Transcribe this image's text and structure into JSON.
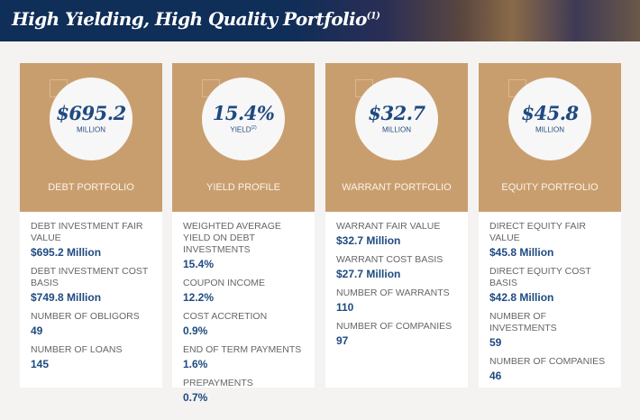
{
  "header": {
    "title": "High Yielding, High Quality Portfolio",
    "footnote": "(1)"
  },
  "cards": [
    {
      "value": "$695.2",
      "unit": "MILLION",
      "unit_sup": "",
      "category": "DEBT PORTFOLIO",
      "items": [
        {
          "label": "DEBT INVESTMENT FAIR VALUE",
          "value": "$695.2 Million"
        },
        {
          "label": "DEBT INVESTMENT COST BASIS",
          "value": "$749.8 Million"
        },
        {
          "label": "NUMBER OF OBLIGORS",
          "value": "49"
        },
        {
          "label": "NUMBER OF LOANS",
          "value": "145"
        }
      ]
    },
    {
      "value": "15.4%",
      "unit": "YIELD",
      "unit_sup": "(2)",
      "category": "YIELD PROFILE",
      "items": [
        {
          "label": "WEIGHTED AVERAGE YIELD ON DEBT INVESTMENTS",
          "value": "15.4%"
        },
        {
          "label": "COUPON INCOME",
          "value": "12.2%"
        },
        {
          "label": "COST ACCRETION",
          "value": "0.9%"
        },
        {
          "label": "END OF TERM PAYMENTS",
          "value": "1.6%"
        },
        {
          "label": "PREPAYMENTS",
          "value": "0.7%"
        }
      ]
    },
    {
      "value": "$32.7",
      "unit": "MILLION",
      "unit_sup": "",
      "category": "WARRANT PORTFOLIO",
      "items": [
        {
          "label": "WARRANT FAIR VALUE",
          "value": "$32.7 Million"
        },
        {
          "label": "WARRANT COST BASIS",
          "value": "$27.7 Million"
        },
        {
          "label": "NUMBER OF WARRANTS",
          "value": "110"
        },
        {
          "label": "NUMBER OF COMPANIES",
          "value": "97"
        }
      ]
    },
    {
      "value": "$45.8",
      "unit": "MILLION",
      "unit_sup": "",
      "category": "EQUITY PORTFOLIO",
      "items": [
        {
          "label": "DIRECT EQUITY FAIR VALUE",
          "value": "$45.8 Million"
        },
        {
          "label": "DIRECT EQUITY COST BASIS",
          "value": "$42.8 Million"
        },
        {
          "label": "NUMBER OF INVESTMENTS",
          "value": "59"
        },
        {
          "label": "NUMBER OF COMPANIES",
          "value": "46"
        }
      ]
    }
  ]
}
